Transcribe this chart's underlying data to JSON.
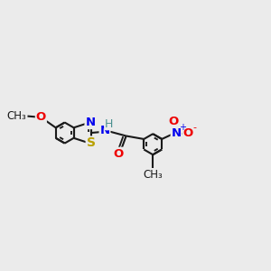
{
  "background_color": "#ebebeb",
  "bond_color": "#1a1a1a",
  "bond_lw": 1.5,
  "atom_colors": {
    "S": "#b8a000",
    "N": "#0000ee",
    "O": "#ee0000",
    "H": "#4a9090",
    "C": "#1a1a1a"
  },
  "figsize": [
    3.0,
    3.0
  ],
  "dpi": 100,
  "xlim": [
    0,
    10
  ],
  "ylim": [
    0,
    10
  ]
}
